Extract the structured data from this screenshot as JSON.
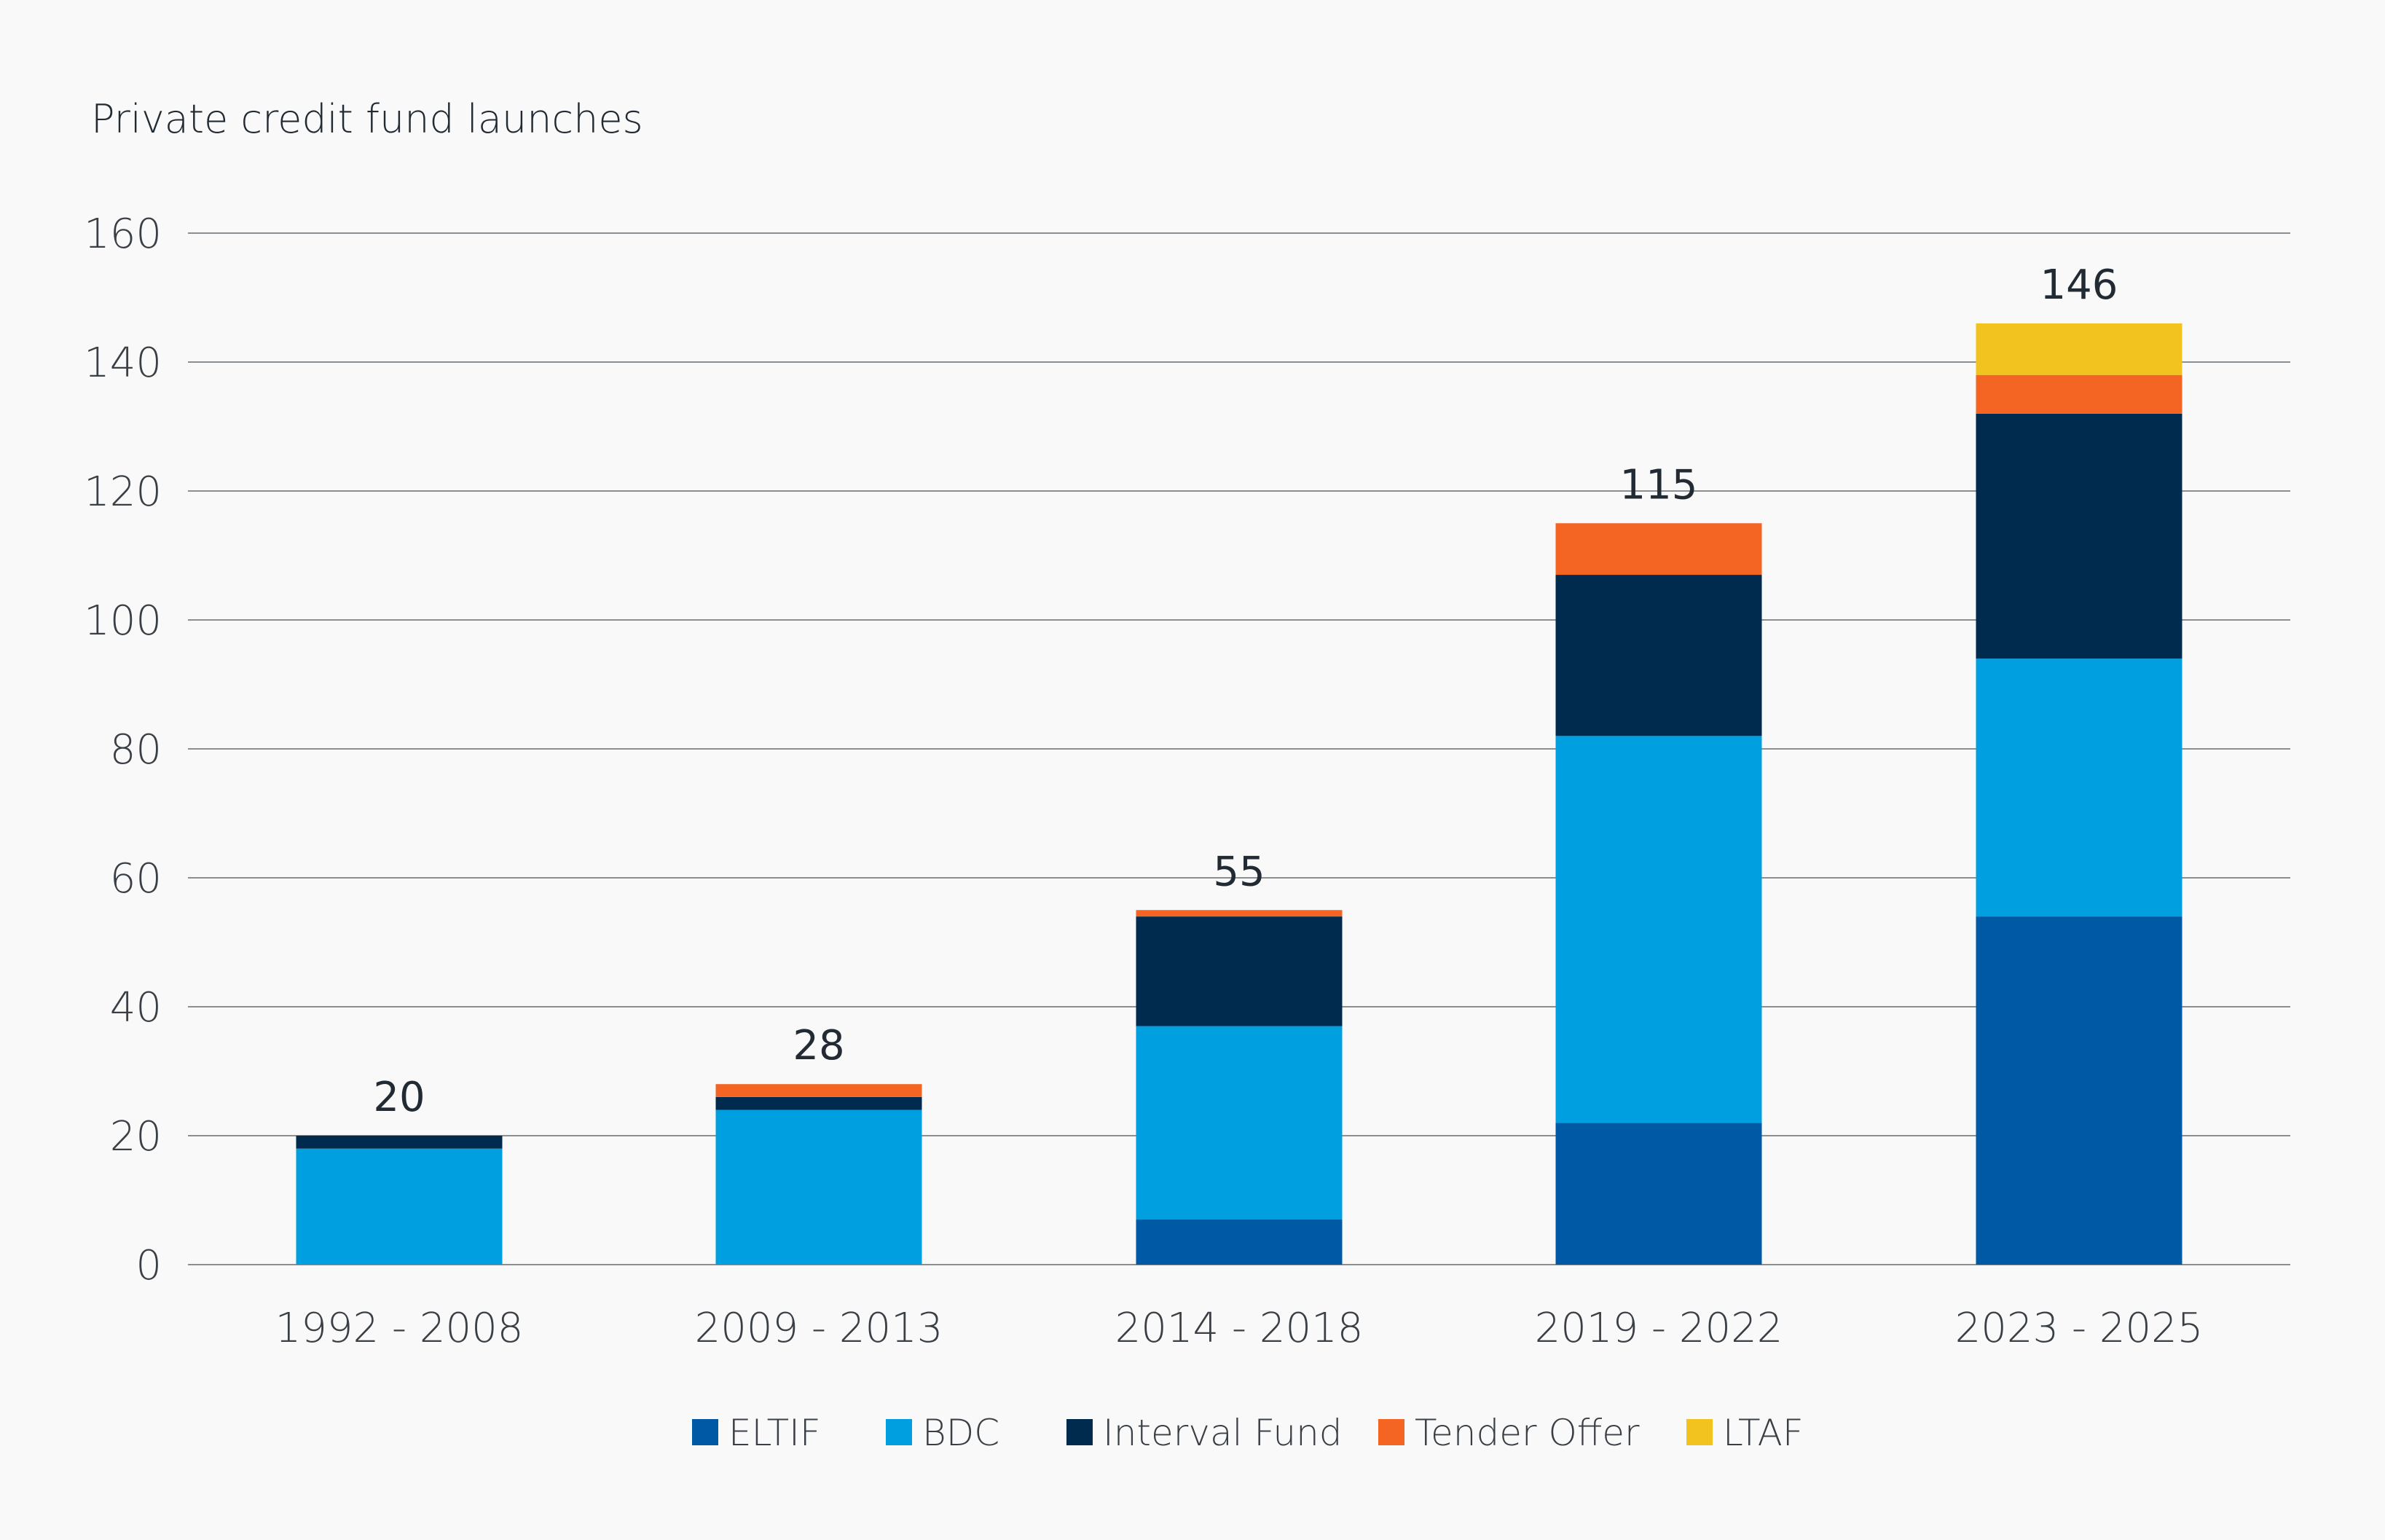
{
  "chart_data": {
    "type": "bar",
    "stacked": true,
    "title": "Private credit fund launches",
    "xlabel": "",
    "ylabel": "",
    "ylim": [
      0,
      160
    ],
    "yticks": [
      0,
      20,
      40,
      60,
      80,
      100,
      120,
      140,
      160
    ],
    "grid": true,
    "legend_position": "bottom",
    "categories": [
      "1992 - 2008",
      "2009 - 2013",
      "2014 - 2018",
      "2019 - 2022",
      "2023 - 2025"
    ],
    "totals": [
      20,
      28,
      55,
      115,
      146
    ],
    "series": [
      {
        "name": "ELTIF",
        "color": "#0059a4",
        "values": [
          0,
          0,
          7,
          22,
          54
        ]
      },
      {
        "name": "BDC",
        "color": "#00a0e0",
        "values": [
          18,
          24,
          30,
          60,
          40
        ]
      },
      {
        "name": "Interval Fund",
        "color": "#002a4e",
        "values": [
          2,
          2,
          17,
          25,
          38
        ]
      },
      {
        "name": "Tender Offer",
        "color": "#f46524",
        "values": [
          0,
          2,
          1,
          8,
          6
        ]
      },
      {
        "name": "LTAF",
        "color": "#f2c31f",
        "values": [
          0,
          0,
          0,
          0,
          8
        ]
      }
    ]
  }
}
